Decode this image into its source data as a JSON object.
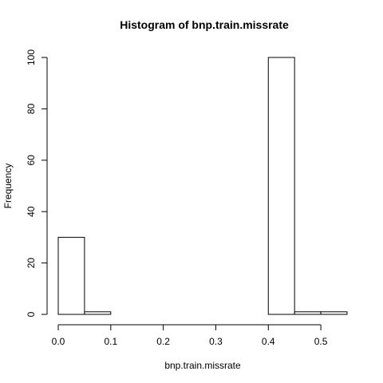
{
  "chart_data": {
    "type": "bar",
    "title": "Histogram of bnp.train.missrate",
    "xlabel": "bnp.train.missrate",
    "ylabel": "Frequency",
    "bins": [
      {
        "x0": 0.0,
        "x1": 0.05,
        "value": 30
      },
      {
        "x0": 0.05,
        "x1": 0.1,
        "value": 1
      },
      {
        "x0": 0.1,
        "x1": 0.15,
        "value": 0
      },
      {
        "x0": 0.15,
        "x1": 0.2,
        "value": 0
      },
      {
        "x0": 0.2,
        "x1": 0.25,
        "value": 0
      },
      {
        "x0": 0.25,
        "x1": 0.3,
        "value": 0
      },
      {
        "x0": 0.3,
        "x1": 0.35,
        "value": 0
      },
      {
        "x0": 0.35,
        "x1": 0.4,
        "value": 0
      },
      {
        "x0": 0.4,
        "x1": 0.45,
        "value": 100
      },
      {
        "x0": 0.45,
        "x1": 0.5,
        "value": 1
      },
      {
        "x0": 0.5,
        "x1": 0.55,
        "value": 1
      }
    ],
    "xlim": [
      0.0,
      0.55
    ],
    "ylim": [
      0,
      100
    ],
    "xticks": [
      0.0,
      0.1,
      0.2,
      0.3,
      0.4,
      0.5
    ],
    "xtick_labels": [
      "0.0",
      "0.1",
      "0.2",
      "0.3",
      "0.4",
      "0.5"
    ],
    "yticks": [
      0,
      20,
      40,
      60,
      80,
      100
    ],
    "ytick_labels": [
      "0",
      "20",
      "40",
      "60",
      "80",
      "100"
    ],
    "grid": false,
    "legend": "none",
    "colors": {
      "bar_fill": "#ffffff",
      "bar_stroke": "#000000",
      "axis": "#000000",
      "text": "#000000"
    }
  }
}
